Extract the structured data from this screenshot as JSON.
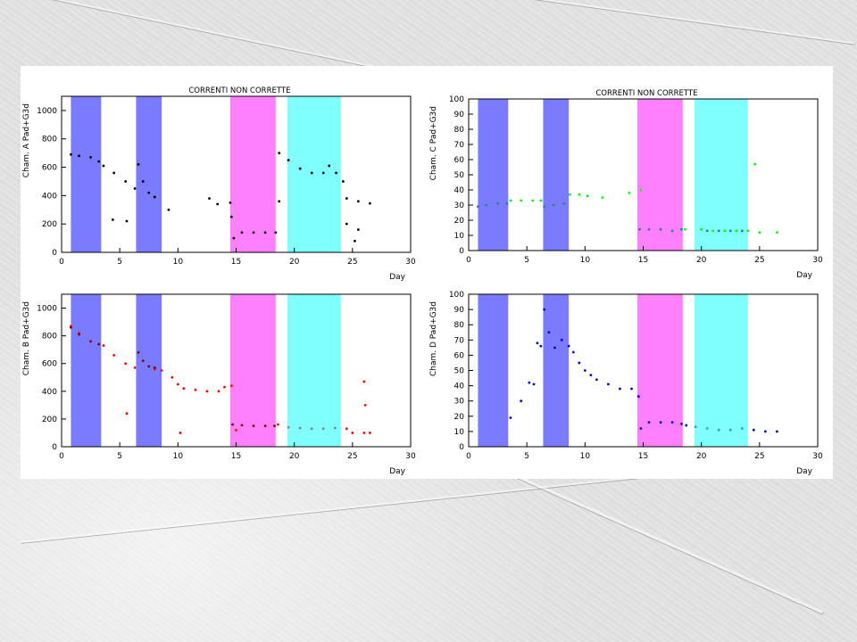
{
  "slide": {
    "background_color": "#ffffff"
  },
  "chart_data": [
    {
      "type": "scatter",
      "title": "CORRENTI NON CORRETTE",
      "xlabel": "Day",
      "ylabel": "Cham. A Pad+G3d",
      "xlim": [
        0,
        30
      ],
      "ylim": [
        0,
        1100
      ],
      "xticks": [
        "0",
        "5",
        "10",
        "15",
        "20",
        "25",
        "30"
      ],
      "yticks": [
        "0",
        "200",
        "400",
        "600",
        "800",
        "1000"
      ],
      "grid": false,
      "bands": [
        {
          "x": [
            0.8,
            3.4
          ],
          "color": "#7b7bff"
        },
        {
          "x": [
            6.4,
            8.6
          ],
          "color": "#7b7bff"
        },
        {
          "x": [
            14.5,
            18.4
          ],
          "color": "#ff80ff"
        },
        {
          "x": [
            19.4,
            24.0
          ],
          "color": "#80ffff"
        }
      ],
      "series": [
        {
          "color": "#000000",
          "x": [
            0.8,
            1.5,
            2.5,
            3.2,
            3.6,
            4.5,
            5.5,
            6.3,
            6.6,
            7.0,
            7.5,
            8.0,
            18.7,
            19.5,
            20.5,
            21.5,
            22.5,
            23.0,
            23.6,
            24.2,
            24.5,
            25.5,
            26.5
          ],
          "y": [
            690,
            680,
            670,
            640,
            610,
            560,
            500,
            450,
            620,
            500,
            420,
            390,
            700,
            650,
            590,
            560,
            560,
            610,
            560,
            500,
            380,
            360,
            345
          ]
        },
        {
          "color": "#000000",
          "x": [
            4.4,
            5.6,
            9.2,
            12.7,
            13.4,
            14.5,
            14.6,
            14.8,
            15.5,
            16.5,
            17.5,
            18.4,
            18.7,
            24.5,
            25.2,
            25.5
          ],
          "y": [
            230,
            220,
            300,
            380,
            340,
            350,
            250,
            100,
            140,
            140,
            140,
            140,
            360,
            200,
            80,
            160
          ]
        }
      ]
    },
    {
      "type": "scatter",
      "title": "CORRENTI NON CORRETTE",
      "xlabel": "Day",
      "ylabel": "Cham. C Pad+G3d",
      "xlim": [
        0,
        30
      ],
      "ylim": [
        0,
        100
      ],
      "xticks": [
        "0",
        "5",
        "10",
        "15",
        "20",
        "25",
        "30"
      ],
      "yticks": [
        "0",
        "10",
        "20",
        "30",
        "40",
        "50",
        "60",
        "70",
        "80",
        "90",
        "100"
      ],
      "grid": false,
      "bands": [
        {
          "x": [
            0.8,
            3.4
          ],
          "color": "#7b7bff"
        },
        {
          "x": [
            6.4,
            8.6
          ],
          "color": "#7b7bff"
        },
        {
          "x": [
            14.5,
            18.4
          ],
          "color": "#ff80ff"
        },
        {
          "x": [
            19.4,
            24.0
          ],
          "color": "#80ffff"
        }
      ],
      "series": [
        {
          "color": "#00ff00",
          "x": [
            3.6,
            4.5,
            5.5,
            6.2,
            8.7,
            9.5,
            10.2,
            11.5,
            13.8,
            14.8,
            18.6,
            20.0,
            21.0,
            22.0,
            23.0,
            24.0,
            24.6,
            25.0,
            26.5
          ],
          "y": [
            33,
            33,
            33,
            33,
            37,
            37,
            36,
            35,
            38,
            40,
            14,
            14,
            13,
            13,
            13,
            13,
            57,
            12,
            12
          ]
        },
        {
          "color": "#2f7f7f",
          "x": [
            0.8,
            1.5,
            2.5,
            3.3,
            6.5,
            7.3,
            8.2,
            14.7,
            15.5,
            16.5,
            17.5,
            18.3,
            20.5,
            21.5,
            22.5,
            23.5
          ],
          "y": [
            29,
            30,
            31,
            31,
            29,
            30,
            31,
            14,
            14,
            14,
            13,
            14,
            13,
            13,
            13,
            13
          ]
        }
      ]
    },
    {
      "type": "scatter",
      "title": "",
      "xlabel": "Day",
      "ylabel": "Cham. B Pad+G3d",
      "xlim": [
        0,
        30
      ],
      "ylim": [
        0,
        1100
      ],
      "xticks": [
        "0",
        "5",
        "10",
        "15",
        "20",
        "25",
        "30"
      ],
      "yticks": [
        "0",
        "200",
        "400",
        "600",
        "800",
        "1000"
      ],
      "grid": false,
      "bands": [
        {
          "x": [
            0.8,
            3.4
          ],
          "color": "#7b7bff"
        },
        {
          "x": [
            6.4,
            8.6
          ],
          "color": "#7b7bff"
        },
        {
          "x": [
            14.5,
            18.4
          ],
          "color": "#ff80ff"
        },
        {
          "x": [
            19.4,
            24.0
          ],
          "color": "#80ffff"
        }
      ],
      "series": [
        {
          "color": "#ff0000",
          "x": [
            0.8,
            1.5,
            2.5,
            3.2,
            3.6,
            4.5,
            5.5,
            6.3,
            8.0,
            8.6,
            9.5,
            10.0,
            10.5,
            11.5,
            12.5,
            13.5,
            14.0,
            14.6,
            15.0,
            18.6,
            24.5,
            25.0,
            26.0,
            26.5
          ],
          "y": [
            870,
            820,
            760,
            740,
            730,
            660,
            600,
            570,
            560,
            550,
            500,
            450,
            420,
            410,
            400,
            400,
            430,
            440,
            120,
            160,
            130,
            100,
            100,
            100
          ]
        },
        {
          "color": "#7f0000",
          "x": [
            0.8,
            1.5,
            2.5,
            3.2,
            6.6,
            7.0,
            7.5,
            8.0,
            14.7,
            15.5,
            16.5,
            17.5,
            18.3
          ],
          "y": [
            860,
            810,
            760,
            740,
            680,
            620,
            580,
            570,
            160,
            155,
            150,
            150,
            150
          ]
        },
        {
          "color": "#808080",
          "x": [
            19.5,
            20.5,
            21.5,
            22.5,
            23.5
          ],
          "y": [
            140,
            135,
            130,
            130,
            135
          ]
        },
        {
          "color": "#ff0000",
          "x": [
            5.6,
            10.2,
            26.0,
            26.1
          ],
          "y": [
            240,
            100,
            470,
            300
          ]
        }
      ]
    },
    {
      "type": "scatter",
      "title": "",
      "xlabel": "Day",
      "ylabel": "Cham. D Pad+G3d",
      "xlim": [
        0,
        30
      ],
      "ylim": [
        0,
        100
      ],
      "xticks": [
        "0",
        "5",
        "10",
        "15",
        "20",
        "25",
        "30"
      ],
      "yticks": [
        "0",
        "10",
        "20",
        "30",
        "40",
        "50",
        "60",
        "70",
        "80",
        "90",
        "100"
      ],
      "grid": false,
      "bands": [
        {
          "x": [
            0.8,
            3.4
          ],
          "color": "#7b7bff"
        },
        {
          "x": [
            6.4,
            8.6
          ],
          "color": "#7b7bff"
        },
        {
          "x": [
            14.5,
            18.4
          ],
          "color": "#ff80ff"
        },
        {
          "x": [
            19.4,
            24.0
          ],
          "color": "#80ffff"
        }
      ],
      "series": [
        {
          "color": "#0000cc",
          "x": [
            0.8,
            1.5,
            2.5,
            3.3,
            3.6,
            4.5,
            5.2,
            5.6,
            5.9,
            6.2,
            6.5,
            6.9,
            7.4,
            8.0,
            8.6,
            9.0,
            9.5,
            10.0,
            10.5,
            11.0,
            12.0,
            13.0,
            14.0,
            14.6,
            14.8,
            15.5,
            16.5,
            17.5,
            18.3,
            18.7,
            24.5,
            25.5,
            26.5
          ],
          "y": [
            null,
            null,
            null,
            null,
            19,
            30,
            42,
            41,
            68,
            66,
            90,
            75,
            65,
            70,
            66,
            62,
            55,
            50,
            47,
            44,
            41,
            38,
            38,
            33,
            12,
            16,
            16,
            16,
            15,
            14,
            11,
            10,
            10
          ]
        },
        {
          "color": "#3399cc",
          "x": [
            19.5,
            20.5,
            21.5,
            22.5,
            23.5
          ],
          "y": [
            13,
            12,
            11,
            11,
            12
          ]
        }
      ]
    }
  ]
}
